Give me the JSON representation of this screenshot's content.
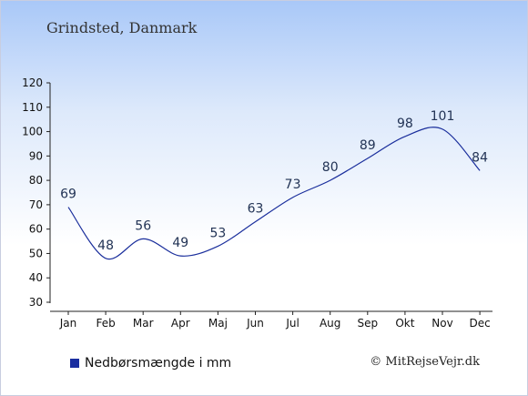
{
  "chart_data": {
    "type": "line",
    "title": "Grindsted, Danmark",
    "categories": [
      "Jan",
      "Feb",
      "Mar",
      "Apr",
      "Maj",
      "Jun",
      "Jul",
      "Aug",
      "Sep",
      "Okt",
      "Nov",
      "Dec"
    ],
    "series": [
      {
        "name": "Nedbørsmængde i mm",
        "values": [
          69,
          48,
          56,
          49,
          53,
          63,
          73,
          80,
          89,
          98,
          101,
          84
        ],
        "color": "#1a2e9c"
      }
    ],
    "ylim": [
      30,
      120
    ],
    "yticks": [
      30,
      40,
      50,
      60,
      70,
      80,
      90,
      100,
      110,
      120
    ],
    "grid": false,
    "legend_position": "bottom-left"
  },
  "legend": {
    "label": "Nedbørsmængde i mm",
    "swatch_color": "#1a2ea0"
  },
  "footer": {
    "copyright": "© MitRejseVejr.dk"
  }
}
